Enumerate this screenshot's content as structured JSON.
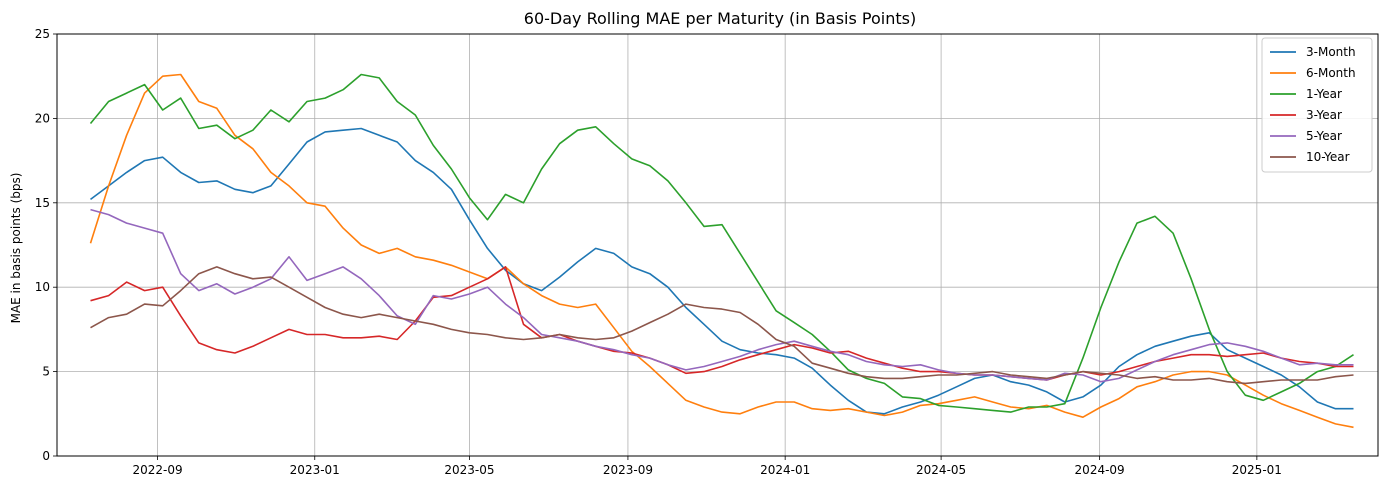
{
  "chart_data": {
    "type": "line",
    "title": "60-Day Rolling MAE per Maturity (in Basis Points)",
    "xlabel": "",
    "ylabel": "MAE in basis points (bps)",
    "x_range": [
      "2022-06-15",
      "2025-04-05"
    ],
    "ylim": [
      0,
      25
    ],
    "y_ticks": [
      0,
      5,
      10,
      15,
      20,
      25
    ],
    "x_ticks": [
      "2022-09",
      "2023-01",
      "2023-05",
      "2023-09",
      "2024-01",
      "2024-05",
      "2024-09",
      "2025-01"
    ],
    "x_tick_dates": [
      "2022-09-01",
      "2023-01-01",
      "2023-05-01",
      "2023-09-01",
      "2024-01-01",
      "2024-05-01",
      "2024-09-01",
      "2025-01-01"
    ],
    "grid": true,
    "legend_position": "top-right",
    "x_dates": [
      "2022-07-11",
      "2022-07-25",
      "2022-08-08",
      "2022-08-22",
      "2022-09-05",
      "2022-09-19",
      "2022-10-03",
      "2022-10-17",
      "2022-10-31",
      "2022-11-14",
      "2022-11-28",
      "2022-12-12",
      "2022-12-26",
      "2023-01-09",
      "2023-01-23",
      "2023-02-06",
      "2023-02-20",
      "2023-03-06",
      "2023-03-20",
      "2023-04-03",
      "2023-04-17",
      "2023-05-01",
      "2023-05-15",
      "2023-05-29",
      "2023-06-12",
      "2023-06-26",
      "2023-07-10",
      "2023-07-24",
      "2023-08-07",
      "2023-08-21",
      "2023-09-04",
      "2023-09-18",
      "2023-10-02",
      "2023-10-16",
      "2023-10-30",
      "2023-11-13",
      "2023-11-27",
      "2023-12-11",
      "2023-12-25",
      "2024-01-08",
      "2024-01-22",
      "2024-02-05",
      "2024-02-19",
      "2024-03-04",
      "2024-03-18",
      "2024-04-01",
      "2024-04-15",
      "2024-04-29",
      "2024-05-13",
      "2024-05-27",
      "2024-06-10",
      "2024-06-24",
      "2024-07-08",
      "2024-07-22",
      "2024-08-05",
      "2024-08-19",
      "2024-09-02",
      "2024-09-16",
      "2024-09-30",
      "2024-10-14",
      "2024-10-28",
      "2024-11-11",
      "2024-11-25",
      "2024-12-09",
      "2024-12-23",
      "2025-01-06",
      "2025-01-20",
      "2025-02-03",
      "2025-02-17",
      "2025-03-03",
      "2025-03-17"
    ],
    "series": [
      {
        "name": "3-Month",
        "color": "#1f77b4",
        "values": [
          15.2,
          16.0,
          16.8,
          17.5,
          17.7,
          16.8,
          16.2,
          16.3,
          15.8,
          15.6,
          16.0,
          17.3,
          18.6,
          19.2,
          19.3,
          19.4,
          19.0,
          18.6,
          17.5,
          16.8,
          15.8,
          14.0,
          12.3,
          11.0,
          10.2,
          9.8,
          10.6,
          11.5,
          12.3,
          12.0,
          11.2,
          10.8,
          10.0,
          8.8,
          7.8,
          6.8,
          6.3,
          6.1,
          6.0,
          5.8,
          5.2,
          4.2,
          3.3,
          2.6,
          2.5,
          2.9,
          3.2,
          3.6,
          4.1,
          4.6,
          4.8,
          4.4,
          4.2,
          3.8,
          3.2,
          3.5,
          4.2,
          5.3,
          6.0,
          6.5,
          6.8,
          7.1,
          7.3,
          6.3,
          5.8,
          5.3,
          4.8,
          4.1,
          3.2,
          2.8,
          2.8
        ]
      },
      {
        "name": "6-Month",
        "color": "#ff7f0e",
        "values": [
          12.6,
          16.0,
          19.0,
          21.5,
          22.5,
          22.6,
          21.0,
          20.6,
          19.0,
          18.2,
          16.8,
          16.0,
          15.0,
          14.8,
          13.5,
          12.5,
          12.0,
          12.3,
          11.8,
          11.6,
          11.3,
          10.9,
          10.5,
          11.2,
          10.2,
          9.5,
          9.0,
          8.8,
          9.0,
          7.6,
          6.2,
          5.3,
          4.3,
          3.3,
          2.9,
          2.6,
          2.5,
          2.9,
          3.2,
          3.2,
          2.8,
          2.7,
          2.8,
          2.6,
          2.4,
          2.6,
          3.0,
          3.1,
          3.3,
          3.5,
          3.2,
          2.9,
          2.8,
          3.0,
          2.6,
          2.3,
          2.9,
          3.4,
          4.1,
          4.4,
          4.8,
          5.0,
          5.0,
          4.8,
          4.2,
          3.6,
          3.1,
          2.7,
          2.3,
          1.9,
          1.7
        ]
      },
      {
        "name": "1-Year",
        "color": "#2ca02c",
        "values": [
          19.7,
          21.0,
          21.5,
          22.0,
          20.5,
          21.2,
          19.4,
          19.6,
          18.8,
          19.3,
          20.5,
          19.8,
          21.0,
          21.2,
          21.7,
          22.6,
          22.4,
          21.0,
          20.2,
          18.4,
          17.0,
          15.3,
          14.0,
          15.5,
          15.0,
          17.0,
          18.5,
          19.3,
          19.5,
          18.5,
          17.6,
          17.2,
          16.3,
          15.0,
          13.6,
          13.7,
          12.0,
          10.3,
          8.6,
          7.9,
          7.2,
          6.2,
          5.1,
          4.6,
          4.3,
          3.5,
          3.4,
          3.0,
          2.9,
          2.8,
          2.7,
          2.6,
          2.9,
          2.9,
          3.1,
          5.8,
          8.8,
          11.5,
          13.8,
          14.2,
          13.2,
          10.5,
          7.5,
          5.0,
          3.6,
          3.3,
          3.8,
          4.3,
          5.0,
          5.3,
          6.0
        ]
      },
      {
        "name": "3-Year",
        "color": "#d62728",
        "values": [
          9.2,
          9.5,
          10.3,
          9.8,
          10.0,
          8.3,
          6.7,
          6.3,
          6.1,
          6.5,
          7.0,
          7.5,
          7.2,
          7.2,
          7.0,
          7.0,
          7.1,
          6.9,
          8.0,
          9.4,
          9.5,
          10.0,
          10.5,
          11.2,
          7.8,
          7.0,
          7.2,
          6.8,
          6.5,
          6.2,
          6.1,
          5.8,
          5.4,
          4.9,
          5.0,
          5.3,
          5.7,
          6.0,
          6.3,
          6.6,
          6.4,
          6.1,
          6.2,
          5.8,
          5.5,
          5.2,
          5.0,
          5.0,
          4.9,
          4.8,
          4.8,
          4.7,
          4.6,
          4.5,
          4.8,
          5.0,
          4.8,
          5.0,
          5.3,
          5.6,
          5.8,
          6.0,
          6.0,
          5.9,
          6.0,
          6.1,
          5.8,
          5.6,
          5.5,
          5.3,
          5.3
        ]
      },
      {
        "name": "5-Year",
        "color": "#9467bd",
        "values": [
          14.6,
          14.3,
          13.8,
          13.5,
          13.2,
          10.8,
          9.8,
          10.2,
          9.6,
          10.0,
          10.5,
          11.8,
          10.4,
          10.8,
          11.2,
          10.5,
          9.5,
          8.3,
          7.8,
          9.5,
          9.3,
          9.6,
          10.0,
          9.0,
          8.2,
          7.2,
          7.0,
          6.8,
          6.5,
          6.3,
          6.0,
          5.8,
          5.4,
          5.1,
          5.3,
          5.6,
          5.9,
          6.3,
          6.6,
          6.8,
          6.5,
          6.2,
          6.0,
          5.6,
          5.4,
          5.3,
          5.4,
          5.1,
          4.9,
          4.8,
          4.8,
          4.7,
          4.6,
          4.5,
          4.9,
          4.8,
          4.4,
          4.6,
          5.1,
          5.6,
          6.0,
          6.3,
          6.6,
          6.7,
          6.5,
          6.2,
          5.8,
          5.4,
          5.5,
          5.4,
          5.4
        ]
      },
      {
        "name": "10-Year",
        "color": "#8c564b",
        "values": [
          7.6,
          8.2,
          8.4,
          9.0,
          8.9,
          9.8,
          10.8,
          11.2,
          10.8,
          10.5,
          10.6,
          10.0,
          9.4,
          8.8,
          8.4,
          8.2,
          8.4,
          8.2,
          8.0,
          7.8,
          7.5,
          7.3,
          7.2,
          7.0,
          6.9,
          7.0,
          7.2,
          7.0,
          6.9,
          7.0,
          7.4,
          7.9,
          8.4,
          9.0,
          8.8,
          8.7,
          8.5,
          7.8,
          6.9,
          6.5,
          5.5,
          5.2,
          4.9,
          4.7,
          4.6,
          4.6,
          4.7,
          4.8,
          4.8,
          4.9,
          5.0,
          4.8,
          4.7,
          4.6,
          4.8,
          5.0,
          4.9,
          4.8,
          4.6,
          4.7,
          4.5,
          4.5,
          4.6,
          4.4,
          4.3,
          4.4,
          4.5,
          4.5,
          4.5,
          4.7,
          4.8
        ]
      }
    ]
  }
}
